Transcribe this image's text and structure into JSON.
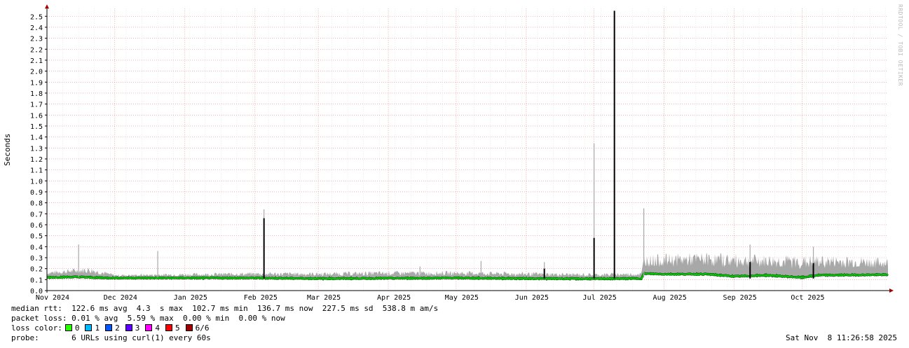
{
  "chart_data": {
    "type": "area",
    "ylabel": "Seconds",
    "ylim": [
      0,
      2.55
    ],
    "yticks": [
      "0.0",
      "0.1",
      "0.2",
      "0.3",
      "0.4",
      "0.5",
      "0.6",
      "0.7",
      "0.8",
      "0.9",
      "1.0",
      "1.1",
      "1.2",
      "1.3",
      "1.4",
      "1.5",
      "1.6",
      "1.7",
      "1.8",
      "1.9",
      "2.0",
      "2.1",
      "2.2",
      "2.3",
      "2.4",
      "2.5"
    ],
    "x_range": [
      "2024-11-01",
      "2025-11-08"
    ],
    "xticks": [
      {
        "date": "2024-11-01",
        "label": "Nov 2024"
      },
      {
        "date": "2024-12-01",
        "label": "Dec 2024"
      },
      {
        "date": "2025-01-01",
        "label": "Jan 2025"
      },
      {
        "date": "2025-02-01",
        "label": "Feb 2025"
      },
      {
        "date": "2025-03-01",
        "label": "Mar 2025"
      },
      {
        "date": "2025-04-01",
        "label": "Apr 2025"
      },
      {
        "date": "2025-05-01",
        "label": "May 2025"
      },
      {
        "date": "2025-06-01",
        "label": "Jun 2025"
      },
      {
        "date": "2025-07-01",
        "label": "Jul 2025"
      },
      {
        "date": "2025-08-01",
        "label": "Aug 2025"
      },
      {
        "date": "2025-09-01",
        "label": "Sep 2025"
      },
      {
        "date": "2025-10-01",
        "label": "Oct 2025"
      }
    ],
    "grid": true,
    "series": {
      "median": [
        {
          "x": "2024-11-01",
          "y": 0.12
        },
        {
          "x": "2024-11-15",
          "y": 0.125
        },
        {
          "x": "2024-11-22",
          "y": 0.118
        },
        {
          "x": "2024-12-01",
          "y": 0.115
        },
        {
          "x": "2025-01-01",
          "y": 0.115
        },
        {
          "x": "2025-02-01",
          "y": 0.115
        },
        {
          "x": "2025-03-01",
          "y": 0.11
        },
        {
          "x": "2025-04-01",
          "y": 0.112
        },
        {
          "x": "2025-05-01",
          "y": 0.115
        },
        {
          "x": "2025-06-01",
          "y": 0.11
        },
        {
          "x": "2025-07-01",
          "y": 0.108
        },
        {
          "x": "2025-07-22",
          "y": 0.11
        },
        {
          "x": "2025-07-23",
          "y": 0.155
        },
        {
          "x": "2025-08-01",
          "y": 0.15
        },
        {
          "x": "2025-08-20",
          "y": 0.15
        },
        {
          "x": "2025-09-01",
          "y": 0.13
        },
        {
          "x": "2025-09-15",
          "y": 0.14
        },
        {
          "x": "2025-10-01",
          "y": 0.12
        },
        {
          "x": "2025-10-08",
          "y": 0.14
        },
        {
          "x": "2025-11-08",
          "y": 0.145
        }
      ],
      "max_envelope": [
        {
          "x": "2024-11-01",
          "y": 0.18
        },
        {
          "x": "2024-11-20",
          "y": 0.22
        },
        {
          "x": "2024-12-01",
          "y": 0.15
        },
        {
          "x": "2025-01-01",
          "y": 0.16
        },
        {
          "x": "2025-02-01",
          "y": 0.17
        },
        {
          "x": "2025-03-01",
          "y": 0.17
        },
        {
          "x": "2025-04-01",
          "y": 0.18
        },
        {
          "x": "2025-05-01",
          "y": 0.18
        },
        {
          "x": "2025-06-01",
          "y": 0.17
        },
        {
          "x": "2025-07-01",
          "y": 0.16
        },
        {
          "x": "2025-07-22",
          "y": 0.17
        },
        {
          "x": "2025-07-23",
          "y": 0.33
        },
        {
          "x": "2025-08-20",
          "y": 0.35
        },
        {
          "x": "2025-09-15",
          "y": 0.33
        },
        {
          "x": "2025-10-15",
          "y": 0.32
        },
        {
          "x": "2025-11-08",
          "y": 0.3
        }
      ],
      "spikes": [
        {
          "x": "2024-11-15",
          "max": 0.42,
          "median": 0
        },
        {
          "x": "2024-12-20",
          "max": 0.36,
          "median": 0
        },
        {
          "x": "2025-02-05",
          "max": 0.74,
          "median": 0.66
        },
        {
          "x": "2025-04-15",
          "max": 0.22,
          "median": 0
        },
        {
          "x": "2025-05-12",
          "max": 0.27,
          "median": 0
        },
        {
          "x": "2025-06-09",
          "max": 0.26,
          "median": 0.2
        },
        {
          "x": "2025-07-01",
          "max": 1.34,
          "median": 0.48
        },
        {
          "x": "2025-07-10",
          "max": 2.55,
          "median": 2.55
        },
        {
          "x": "2025-07-23",
          "max": 0.75,
          "median": 0
        },
        {
          "x": "2025-09-08",
          "max": 0.42,
          "median": 0.26
        },
        {
          "x": "2025-10-06",
          "max": 0.4,
          "median": 0.25
        }
      ]
    }
  },
  "colors": {
    "grid": "#e48a8a",
    "smoke": "#a8a8a8",
    "median_line": "#00cc00",
    "spike": "#000000",
    "axis": "#000000",
    "arrow": "#a00000"
  },
  "legend": {
    "rtt_line": "median rtt:  122.6 ms avg  4.3  s max  102.7 ms min  136.7 ms now  227.5 ms sd  538.8 m am/s",
    "loss_line": "packet loss: 0.01 % avg  5.59 % max  0.00 % min  0.00 % now",
    "loss_color_label": "loss color:",
    "loss_colors": [
      {
        "label": "0",
        "color": "#26ff00"
      },
      {
        "label": "1",
        "color": "#00b8ff"
      },
      {
        "label": "2",
        "color": "#0059ff"
      },
      {
        "label": "3",
        "color": "#5e00ff"
      },
      {
        "label": "4",
        "color": "#ff00ff"
      },
      {
        "label": "5",
        "color": "#ff0000"
      },
      {
        "label": "6/6",
        "color": "#a10000"
      }
    ],
    "probe_label": "probe:",
    "probe_text": "6 URLs using curl(1) every 60s"
  },
  "timestamp": "Sat Nov  8 11:26:58 2025",
  "watermark": "RRDTOOL / TOBI OETIKER"
}
